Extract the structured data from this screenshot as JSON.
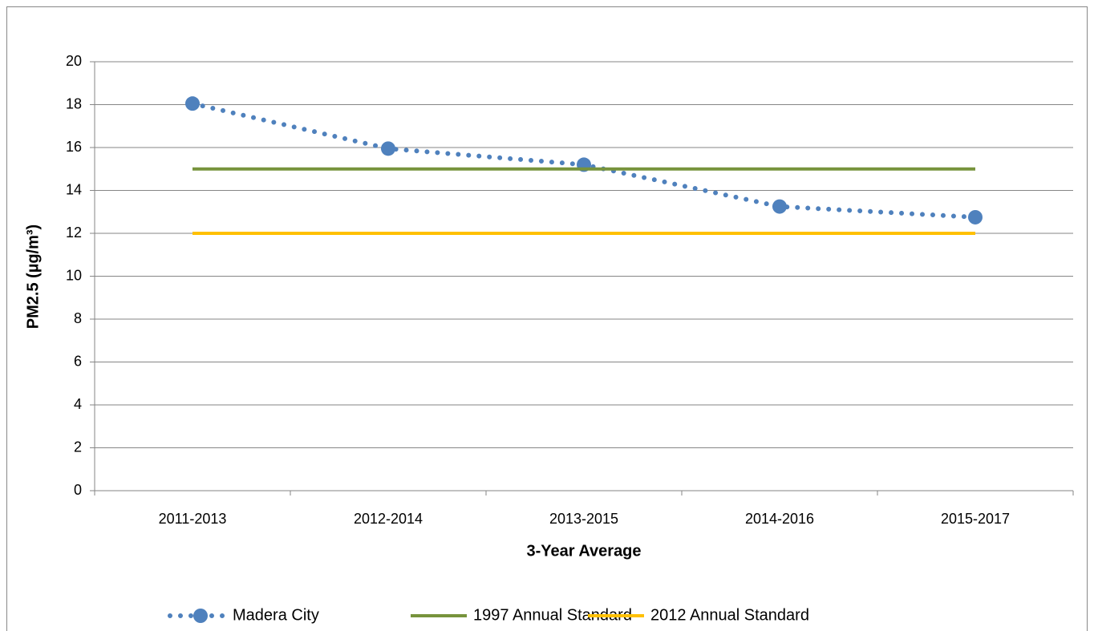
{
  "chart_data": {
    "type": "line",
    "x_label": "3-Year Average",
    "y_label": "PM2.5 (µg/m³)",
    "categories": [
      "2011-2013",
      "2012-2014",
      "2013-2015",
      "2014-2016",
      "2015-2017"
    ],
    "series": [
      {
        "name": "Madera City",
        "color": "#4f81bd",
        "line_style": "dotted",
        "markers": true,
        "values": [
          18.05,
          15.95,
          15.2,
          13.25,
          12.75
        ]
      },
      {
        "name": "1997 Annual Standard",
        "color": "#77933c",
        "line_style": "solid",
        "markers": false,
        "values": [
          15,
          15,
          15,
          15,
          15
        ]
      },
      {
        "name": "2012 Annual Standard",
        "color": "#ffc000",
        "line_style": "solid",
        "markers": false,
        "values": [
          12,
          12,
          12,
          12,
          12
        ]
      }
    ],
    "ylim": [
      0,
      20
    ],
    "yticks": [
      0,
      2,
      4,
      6,
      8,
      10,
      12,
      14,
      16,
      18,
      20
    ],
    "grid": true,
    "legend": "bottom"
  }
}
